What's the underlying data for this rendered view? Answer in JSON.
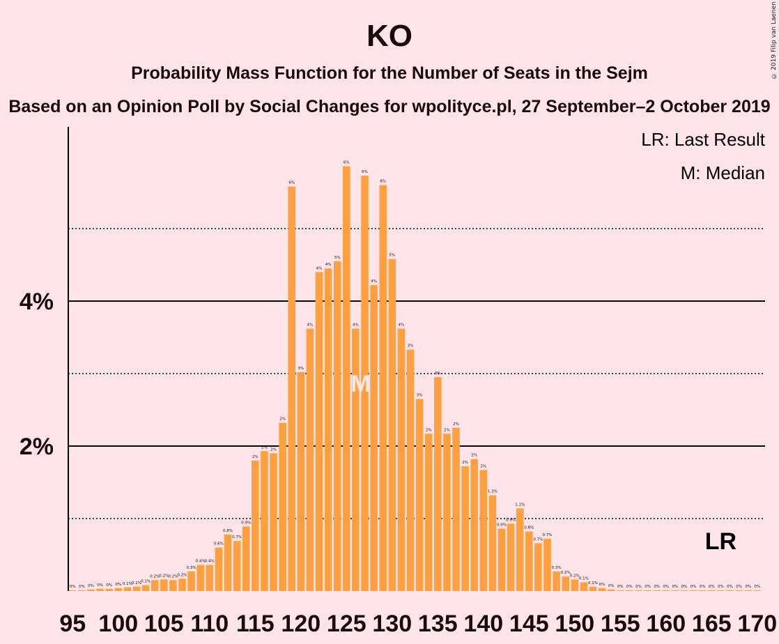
{
  "title": "KO",
  "subtitle": "Probability Mass Function for the Number of Seats in the Sejm",
  "source_line": "Based on an Opinion Poll by Social Changes for wpolityce.pl, 27 September–2 October 2019",
  "copyright": "© 2019 Filip van Laenen",
  "legend": {
    "lr": "LR: Last Result",
    "m": "M: Median"
  },
  "markers": {
    "lr_label": "LR",
    "median_label": "M",
    "median_seat": 127,
    "last_result_seat": 166
  },
  "colors": {
    "bar": "#ffa040",
    "background": "#ffe4e9",
    "text": "#1a0a0a"
  },
  "chart_data": {
    "type": "bar",
    "title": "KO",
    "xlabel": "",
    "ylabel": "",
    "x_ticks": [
      95,
      100,
      105,
      110,
      115,
      120,
      125,
      130,
      135,
      140,
      145,
      150,
      155,
      160,
      165,
      170
    ],
    "y_ticks": [
      {
        "value": 2,
        "label": "2%"
      },
      {
        "value": 4,
        "label": "4%"
      }
    ],
    "ylim": [
      0,
      6.4
    ],
    "grid": "solid at 2% and 4%, dotted at 1%, 3% and 5%",
    "seats": [
      95,
      96,
      97,
      98,
      99,
      100,
      101,
      102,
      103,
      104,
      105,
      106,
      107,
      108,
      109,
      110,
      111,
      112,
      113,
      114,
      115,
      116,
      117,
      118,
      119,
      120,
      121,
      122,
      123,
      124,
      125,
      126,
      127,
      128,
      129,
      130,
      131,
      132,
      133,
      134,
      135,
      136,
      137,
      138,
      139,
      140,
      141,
      142,
      143,
      144,
      145,
      146,
      147,
      148,
      149,
      150,
      151,
      152,
      153,
      154,
      155,
      156,
      157,
      158,
      159,
      160,
      161,
      162,
      163,
      164,
      165,
      166,
      167,
      168,
      169,
      170
    ],
    "values": [
      0.01,
      0.01,
      0.02,
      0.03,
      0.03,
      0.04,
      0.05,
      0.06,
      0.08,
      0.15,
      0.16,
      0.15,
      0.17,
      0.27,
      0.36,
      0.36,
      0.6,
      0.78,
      0.69,
      0.89,
      1.8,
      1.93,
      1.9,
      2.32,
      5.58,
      3.02,
      3.62,
      4.4,
      4.45,
      4.55,
      5.86,
      3.62,
      5.73,
      4.22,
      5.6,
      4.58,
      3.62,
      3.33,
      2.65,
      2.17,
      2.95,
      2.17,
      2.25,
      1.72,
      1.82,
      1.67,
      1.32,
      0.86,
      0.93,
      1.14,
      0.82,
      0.66,
      0.72,
      0.27,
      0.2,
      0.16,
      0.12,
      0.06,
      0.04,
      0.02,
      0.01,
      0.01,
      0.01,
      0.01,
      0.01,
      0.01,
      0.01,
      0.01,
      0.01,
      0.01,
      0.01,
      0.01,
      0.01,
      0.01,
      0.01,
      0.01
    ],
    "labels": [
      "0%",
      "0%",
      "0%",
      "0%",
      "0%",
      "0%",
      "0.1%",
      "0.1%",
      "0.1%",
      "0.2%",
      "0.2%",
      "0.2%",
      "0.2%",
      "0.3%",
      "0.4%",
      "0.4%",
      "0.6%",
      "0.8%",
      "0.7%",
      "0.9%",
      "2%",
      "2%",
      "2%",
      "2%",
      "6%",
      "3%",
      "4%",
      "4%",
      "4%",
      "5%",
      "6%",
      "4%",
      "6%",
      "4%",
      "6%",
      "5%",
      "4%",
      "3%",
      "3%",
      "2%",
      "3%",
      "2%",
      "2%",
      "2%",
      "2%",
      "2%",
      "1.3%",
      "0.9%",
      "0.9%",
      "1.1%",
      "0.8%",
      "0.7%",
      "0.7%",
      "0.3%",
      "0.2%",
      "0.2%",
      "0.1%",
      "0.1%",
      "0%",
      "0%",
      "0%",
      "0%",
      "0%",
      "0%",
      "0%",
      "0%",
      "0%",
      "0%",
      "0%",
      "0%",
      "0%",
      "0%",
      "0%",
      "0%",
      "0%",
      "0%"
    ]
  }
}
